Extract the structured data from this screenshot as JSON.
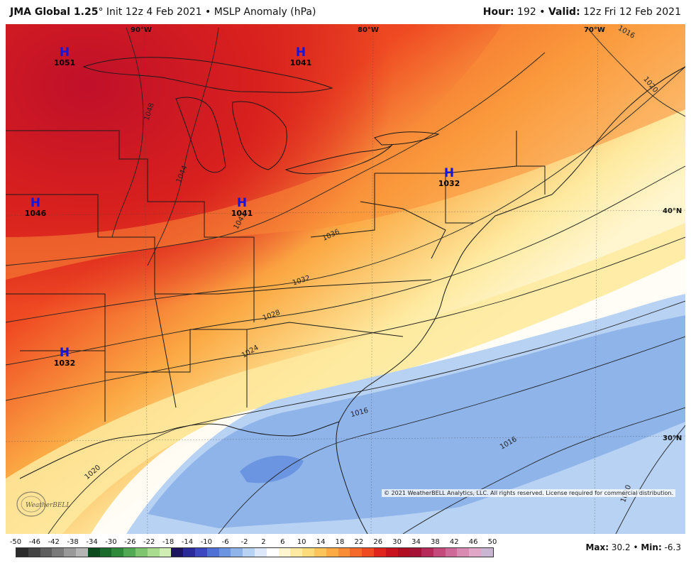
{
  "header": {
    "model": "JMA Global 1.25",
    "degree": "°",
    "init": "Init 12z 4 Feb 2021",
    "bullet": "•",
    "product": "MSLP Anomaly (hPa)",
    "hour_label": "Hour:",
    "hour_value": "192",
    "valid_label": "Valid:",
    "valid_value": "12z Fri 12 Feb 2021"
  },
  "highs": [
    {
      "symbol": "H",
      "value": "1051"
    },
    {
      "symbol": "H",
      "value": "1041"
    },
    {
      "symbol": "H",
      "value": "1032"
    },
    {
      "symbol": "H",
      "value": "1046"
    },
    {
      "symbol": "H",
      "value": "1041"
    },
    {
      "symbol": "H",
      "value": "1032"
    }
  ],
  "lat_lon_labels": [
    "90°W",
    "80°W",
    "70°W",
    "40°N",
    "30°N"
  ],
  "isobar_labels": [
    "1048",
    "1044",
    "1041",
    "1036",
    "1032",
    "1028",
    "1024",
    "1020",
    "1016",
    "1016",
    "1020",
    "1016",
    "1020"
  ],
  "copyright": "© 2021 WeatherBELL Analytics, LLC. All rights reserved. License required for commercial distribution.",
  "logo_text": "WeatherBELL",
  "colorbar": {
    "ticks": [
      "-50",
      "-46",
      "-42",
      "-38",
      "-34",
      "-30",
      "-26",
      "-22",
      "-18",
      "-14",
      "-10",
      "-6",
      "-2",
      "2",
      "6",
      "10",
      "14",
      "18",
      "22",
      "26",
      "30",
      "34",
      "38",
      "42",
      "46",
      "50"
    ],
    "colors": [
      "#2b2b2b",
      "#444444",
      "#5e5e5e",
      "#7a7a7a",
      "#999999",
      "#b5b5b5",
      "#0d4a1e",
      "#1a6b2c",
      "#2f8a3c",
      "#52a853",
      "#7fc46e",
      "#a9dc8e",
      "#d0eeb4",
      "#1d1560",
      "#2a2a9a",
      "#3c47c0",
      "#4f70d4",
      "#6b95e0",
      "#8fb4ea",
      "#b8d2f3",
      "#dde9fa",
      "#ffffff",
      "#fff6d0",
      "#feeaa0",
      "#fddb7a",
      "#fcc55c",
      "#fbaa44",
      "#f98c36",
      "#f56a2a",
      "#ef4a22",
      "#e0251e",
      "#c8121d",
      "#b00f22",
      "#a51238",
      "#b52a58",
      "#c44a7c",
      "#cf6a98",
      "#d88ab0",
      "#e0a8c6",
      "#c9b6d2"
    ]
  },
  "stats": {
    "max_label": "Max:",
    "max_value": "30.2",
    "min_label": "Min:",
    "min_value": "-6.3"
  },
  "colors": {
    "high_marker": "#1515e0",
    "strong_anomaly": "#c8121d",
    "neutral": "#ffffff",
    "negative": "#8fb4ea"
  }
}
